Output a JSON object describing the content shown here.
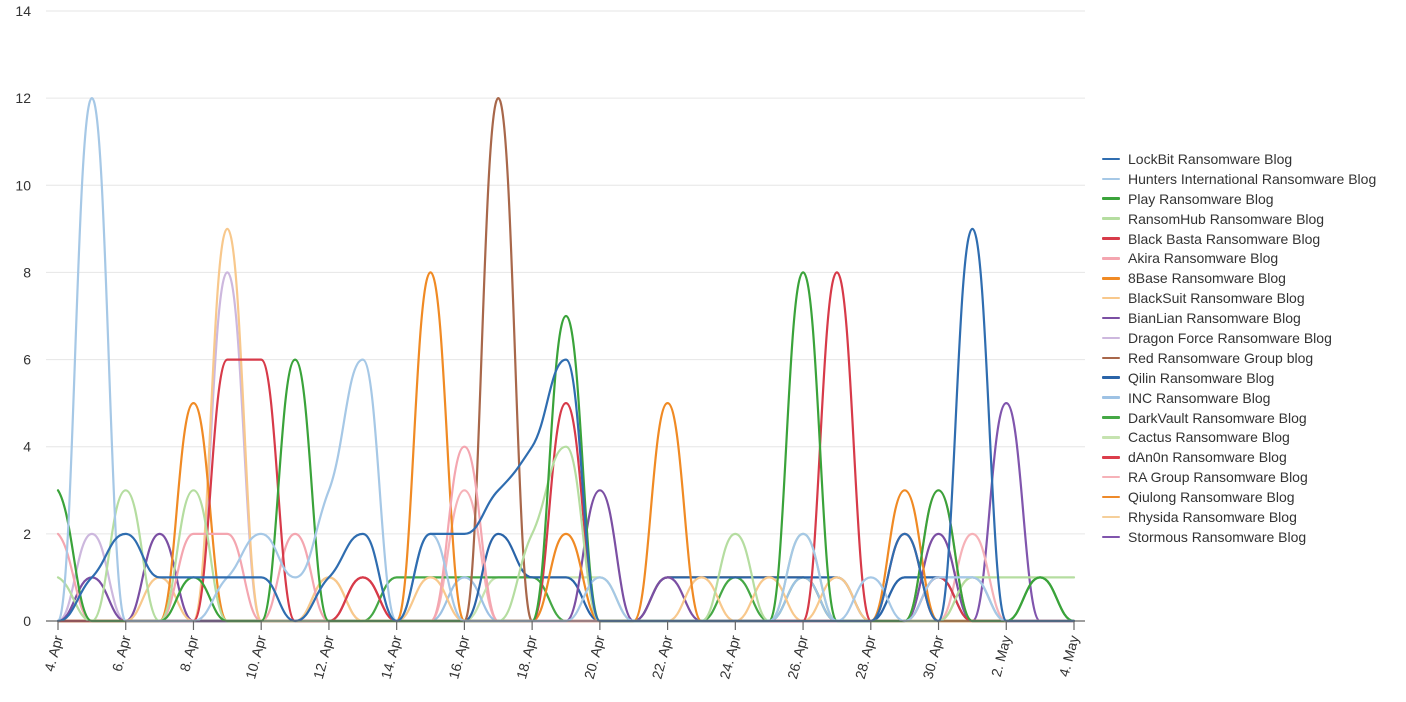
{
  "chart_data": {
    "type": "line",
    "title": "",
    "xlabel": "",
    "ylabel": "",
    "ylim": [
      0,
      14
    ],
    "yticks": [
      0,
      2,
      4,
      6,
      8,
      10,
      12,
      14
    ],
    "grid": true,
    "legend_position": "right",
    "x": [
      "4. Apr",
      "5. Apr",
      "6. Apr",
      "7. Apr",
      "8. Apr",
      "9. Apr",
      "10. Apr",
      "11. Apr",
      "12. Apr",
      "13. Apr",
      "14. Apr",
      "15. Apr",
      "16. Apr",
      "17. Apr",
      "18. Apr",
      "19. Apr",
      "20. Apr",
      "21. Apr",
      "22. Apr",
      "23. Apr",
      "24. Apr",
      "25. Apr",
      "26. Apr",
      "27. Apr",
      "28. Apr",
      "29. Apr",
      "30. Apr",
      "1. May",
      "2. May",
      "3. May",
      "4. May"
    ],
    "xtick_labels": [
      "4. Apr",
      "6. Apr",
      "8. Apr",
      "10. Apr",
      "12. Apr",
      "14. Apr",
      "16. Apr",
      "18. Apr",
      "20. Apr",
      "22. Apr",
      "24. Apr",
      "26. Apr",
      "28. Apr",
      "30. Apr",
      "2. May",
      "4. May"
    ],
    "series": [
      {
        "name": "LockBit Ransomware Blog",
        "color": "#2f6db0",
        "values": [
          0,
          1,
          2,
          1,
          1,
          1,
          1,
          0,
          1,
          2,
          0,
          2,
          2,
          3,
          4,
          6,
          0,
          0,
          0,
          0,
          0,
          0,
          0,
          0,
          0,
          2,
          0,
          9,
          0,
          0,
          0
        ]
      },
      {
        "name": "Hunters International Ransomware Blog",
        "color": "#a6c8e6",
        "values": [
          0,
          12,
          0,
          0,
          0,
          1,
          2,
          1,
          3,
          6,
          0,
          2,
          0,
          0,
          0,
          0,
          1,
          0,
          0,
          0,
          0,
          0,
          2,
          0,
          1,
          0,
          1,
          1,
          0,
          0,
          0
        ]
      },
      {
        "name": "Play Ransomware Blog",
        "color": "#3aa33a",
        "values": [
          3,
          0,
          0,
          0,
          1,
          0,
          0,
          6,
          0,
          0,
          0,
          0,
          0,
          0,
          0,
          7,
          0,
          0,
          0,
          0,
          0,
          0,
          8,
          0,
          0,
          0,
          3,
          0,
          0,
          1,
          0
        ]
      },
      {
        "name": "RansomHub Ransomware Blog",
        "color": "#b5dda0",
        "values": [
          1,
          0,
          3,
          0,
          3,
          0,
          0,
          0,
          0,
          0,
          0,
          0,
          0,
          0,
          2,
          4,
          0,
          0,
          0,
          0,
          2,
          0,
          2,
          0,
          0,
          0,
          0,
          1,
          1,
          1,
          1
        ]
      },
      {
        "name": "Black Basta Ransomware Blog",
        "color": "#d73a49",
        "values": [
          0,
          0,
          0,
          0,
          0,
          6,
          6,
          0,
          0,
          1,
          0,
          0,
          0,
          0,
          0,
          5,
          0,
          0,
          0,
          0,
          0,
          0,
          0,
          8,
          0,
          0,
          1,
          0,
          0,
          0,
          0
        ]
      },
      {
        "name": "Akira Ransomware Blog",
        "color": "#f4a6b0",
        "values": [
          2,
          0,
          0,
          0,
          2,
          2,
          0,
          2,
          0,
          0,
          0,
          0,
          4,
          0,
          0,
          0,
          0,
          0,
          0,
          0,
          0,
          0,
          0,
          0,
          0,
          0,
          3,
          0,
          0,
          0,
          0
        ]
      },
      {
        "name": "8Base Ransomware Blog",
        "color": "#f08a24",
        "values": [
          0,
          0,
          0,
          0,
          5,
          0,
          0,
          0,
          0,
          0,
          0,
          8,
          0,
          0,
          0,
          2,
          0,
          0,
          5,
          0,
          0,
          0,
          0,
          0,
          0,
          3,
          0,
          0,
          0,
          0,
          0
        ]
      },
      {
        "name": "BlackSuit Ransomware Blog",
        "color": "#f8c88c",
        "values": [
          0,
          0,
          0,
          1,
          0,
          9,
          0,
          0,
          1,
          0,
          0,
          1,
          0,
          0,
          0,
          0,
          0,
          0,
          0,
          1,
          0,
          1,
          0,
          1,
          0,
          0,
          0,
          0,
          0,
          0,
          0
        ]
      },
      {
        "name": "BianLian Ransomware Blog",
        "color": "#7b4fa3",
        "values": [
          0,
          1,
          0,
          2,
          0,
          0,
          0,
          0,
          0,
          0,
          0,
          0,
          0,
          0,
          0,
          0,
          3,
          0,
          1,
          0,
          0,
          0,
          0,
          0,
          0,
          0,
          2,
          0,
          0,
          0,
          0
        ]
      },
      {
        "name": "Dragon Force Ransomware Blog",
        "color": "#cdb8de",
        "values": [
          0,
          2,
          0,
          0,
          0,
          8,
          0,
          0,
          0,
          0,
          0,
          0,
          0,
          0,
          0,
          0,
          0,
          0,
          0,
          0,
          0,
          0,
          0,
          0,
          0,
          0,
          0,
          0,
          0,
          0,
          0
        ]
      },
      {
        "name": "Red Ransomware Group blog",
        "color": "#a8674a",
        "values": [
          0,
          0,
          0,
          0,
          0,
          0,
          0,
          0,
          0,
          0,
          0,
          0,
          0,
          12,
          0,
          0,
          0,
          0,
          0,
          0,
          0,
          0,
          0,
          0,
          0,
          0,
          0,
          0,
          0,
          0,
          0
        ]
      },
      {
        "name": "Qilin Ransomware Blog",
        "color": "#2a64a8",
        "values": [
          0,
          0,
          0,
          0,
          0,
          0,
          0,
          0,
          0,
          0,
          0,
          0,
          0,
          2,
          1,
          1,
          0,
          0,
          1,
          1,
          1,
          1,
          1,
          1,
          0,
          1,
          1,
          0,
          0,
          0,
          0
        ]
      },
      {
        "name": "INC Ransomware Blog",
        "color": "#9ec2e4",
        "values": [
          0,
          0,
          0,
          0,
          0,
          0,
          0,
          0,
          0,
          0,
          0,
          0,
          1,
          0,
          0,
          0,
          0,
          0,
          0,
          0,
          0,
          0,
          1,
          0,
          0,
          1,
          1,
          1,
          0,
          0,
          0
        ]
      },
      {
        "name": "DarkVault Ransomware Blog",
        "color": "#45a845",
        "values": [
          0,
          0,
          0,
          0,
          0,
          0,
          0,
          0,
          0,
          0,
          1,
          1,
          1,
          1,
          1,
          0,
          0,
          0,
          0,
          0,
          1,
          0,
          1,
          0,
          0,
          0,
          0,
          0,
          0,
          1,
          0
        ]
      },
      {
        "name": "Cactus Ransomware Blog",
        "color": "#c6e3b0",
        "values": [
          0,
          0,
          0,
          0,
          0,
          0,
          0,
          0,
          0,
          0,
          0,
          0,
          0,
          1,
          1,
          1,
          1,
          0,
          0,
          0,
          0,
          0,
          0,
          0,
          0,
          0,
          0,
          0,
          0,
          0,
          0
        ]
      },
      {
        "name": "dAn0n Ransomware Blog",
        "color": "#dc3d4b",
        "values": [
          0,
          0,
          0,
          0,
          0,
          0,
          0,
          0,
          0,
          1,
          0,
          0,
          0,
          0,
          0,
          0,
          0,
          0,
          0,
          0,
          0,
          0,
          0,
          0,
          0,
          2,
          0,
          0,
          0,
          0,
          0
        ]
      },
      {
        "name": "RA Group Ransomware Blog",
        "color": "#f6b2b8",
        "values": [
          0,
          0,
          0,
          0,
          0,
          0,
          0,
          0,
          0,
          0,
          0,
          0,
          3,
          0,
          0,
          0,
          0,
          0,
          0,
          0,
          0,
          0,
          0,
          0,
          0,
          0,
          0,
          2,
          0,
          0,
          0
        ]
      },
      {
        "name": "Qiulong Ransomware Blog",
        "color": "#ee8a2a",
        "values": [
          0,
          0,
          0,
          0,
          0,
          0,
          0,
          0,
          0,
          0,
          0,
          0,
          0,
          0,
          0,
          0,
          0,
          0,
          1,
          1,
          1,
          1,
          1,
          0,
          0,
          0,
          0,
          0,
          0,
          0,
          0
        ]
      },
      {
        "name": "Rhysida Ransomware Blog",
        "color": "#f5cf9a",
        "values": [
          0,
          0,
          0,
          0,
          0,
          0,
          0,
          0,
          1,
          0,
          0,
          0,
          0,
          0,
          0,
          0,
          0,
          0,
          0,
          0,
          0,
          0,
          0,
          0,
          0,
          0,
          0,
          1,
          0,
          0,
          0
        ]
      },
      {
        "name": "Stormous Ransomware Blog",
        "color": "#8055ad",
        "values": [
          0,
          0,
          0,
          0,
          0,
          0,
          0,
          0,
          0,
          0,
          0,
          0,
          0,
          0,
          0,
          0,
          0,
          0,
          0,
          0,
          0,
          0,
          0,
          0,
          0,
          0,
          0,
          0,
          5,
          0,
          0
        ]
      }
    ]
  }
}
